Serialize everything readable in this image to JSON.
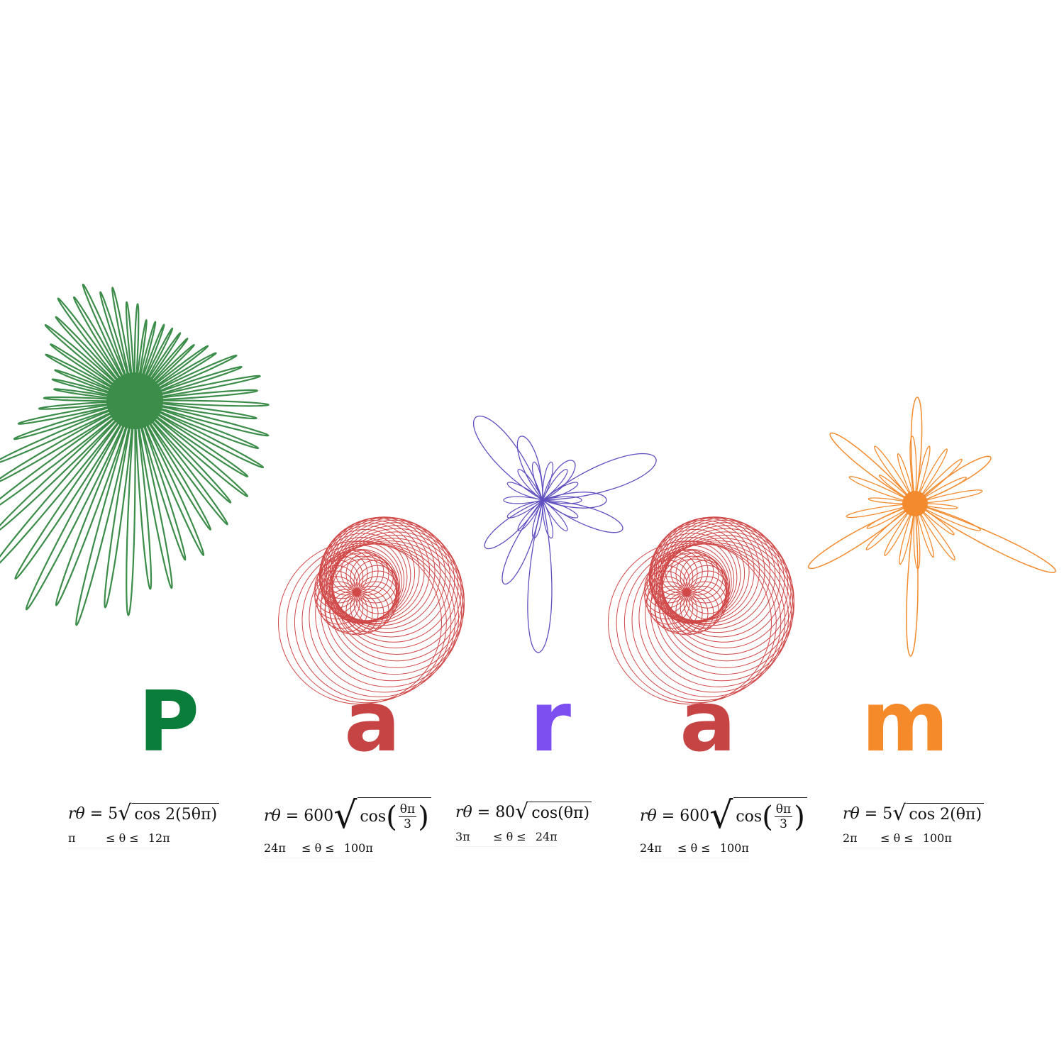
{
  "letters": [
    {
      "char": "P",
      "color": "#0b7d3b"
    },
    {
      "char": "a",
      "color": "#c74444"
    },
    {
      "char": "r",
      "color": "#7d4ff0"
    },
    {
      "char": "a",
      "color": "#c74444"
    },
    {
      "char": "m",
      "color": "#f58a2a"
    }
  ],
  "curve_colors": {
    "green": "#3c8c4a",
    "red": "#d04848",
    "purple": "#5f4fc0",
    "orange": "#f38b2e"
  },
  "formulas": [
    {
      "lhs": "rθ",
      "coef": "5",
      "radicand": "cos 2(5θπ)",
      "lo": "π",
      "rel": "≤ θ ≤",
      "hi": "12π"
    },
    {
      "lhs": "rθ",
      "coef": "600",
      "cos": "cos",
      "num": "θπ",
      "den": "3",
      "lo": "24π",
      "rel": "≤ θ ≤",
      "hi": "100π"
    },
    {
      "lhs": "rθ",
      "coef": "80",
      "radicand": "cos(θπ)",
      "lo": "3π",
      "rel": "≤ θ ≤",
      "hi": "24π"
    },
    {
      "lhs": "rθ",
      "coef": "600",
      "cos": "cos",
      "num": "θπ",
      "den": "3",
      "lo": "24π",
      "rel": "≤ θ ≤",
      "hi": "100π"
    },
    {
      "lhs": "rθ",
      "coef": "5",
      "radicand": "cos 2(θπ)",
      "lo": "2π",
      "rel": "≤ θ ≤",
      "hi": "100π"
    }
  ]
}
